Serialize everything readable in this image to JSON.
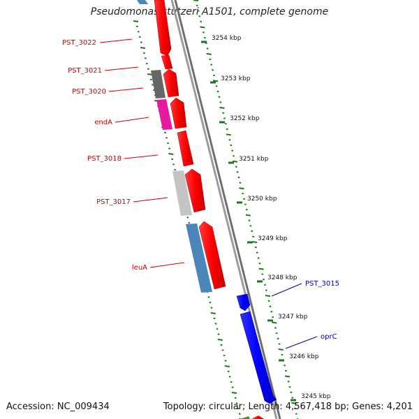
{
  "title": "Pseudomonas stutzeri A1501, complete genome",
  "footer": {
    "accession": "Accession: NC_009434",
    "topology": "Topology: circular; Length: 4,567,418 bp; Genes: 4,201"
  },
  "ruler": [
    {
      "label": "3254 kbp"
    },
    {
      "label": "3253 kbp"
    },
    {
      "label": "3252 kbp"
    },
    {
      "label": "3251 kbp"
    },
    {
      "label": "3250 kbp"
    },
    {
      "label": "3249 kbp"
    },
    {
      "label": "3248 kbp"
    },
    {
      "label": "3247 kbp"
    },
    {
      "label": "3246 kbp"
    },
    {
      "label": "3245 kbp"
    }
  ],
  "gene_labels": {
    "left": [
      "PST_3022",
      "PST_3021",
      "PST_3020",
      "endA",
      "PST_3018",
      "PST_3017",
      "leuA"
    ],
    "right": [
      "PST_3015",
      "oprC"
    ]
  },
  "colors": {
    "gene_red": "#ff0000",
    "gene_blue": "#0000ff",
    "label_red": "#cc0000",
    "label_blue": "#0000aa",
    "tick_green": "#1a7a1a",
    "backbone": "#888888",
    "cog_steelblue": "#4a86b8",
    "cog_gray": "#666666",
    "cog_magenta": "#e6199f",
    "cog_lightgray": "#c4c4c4"
  }
}
